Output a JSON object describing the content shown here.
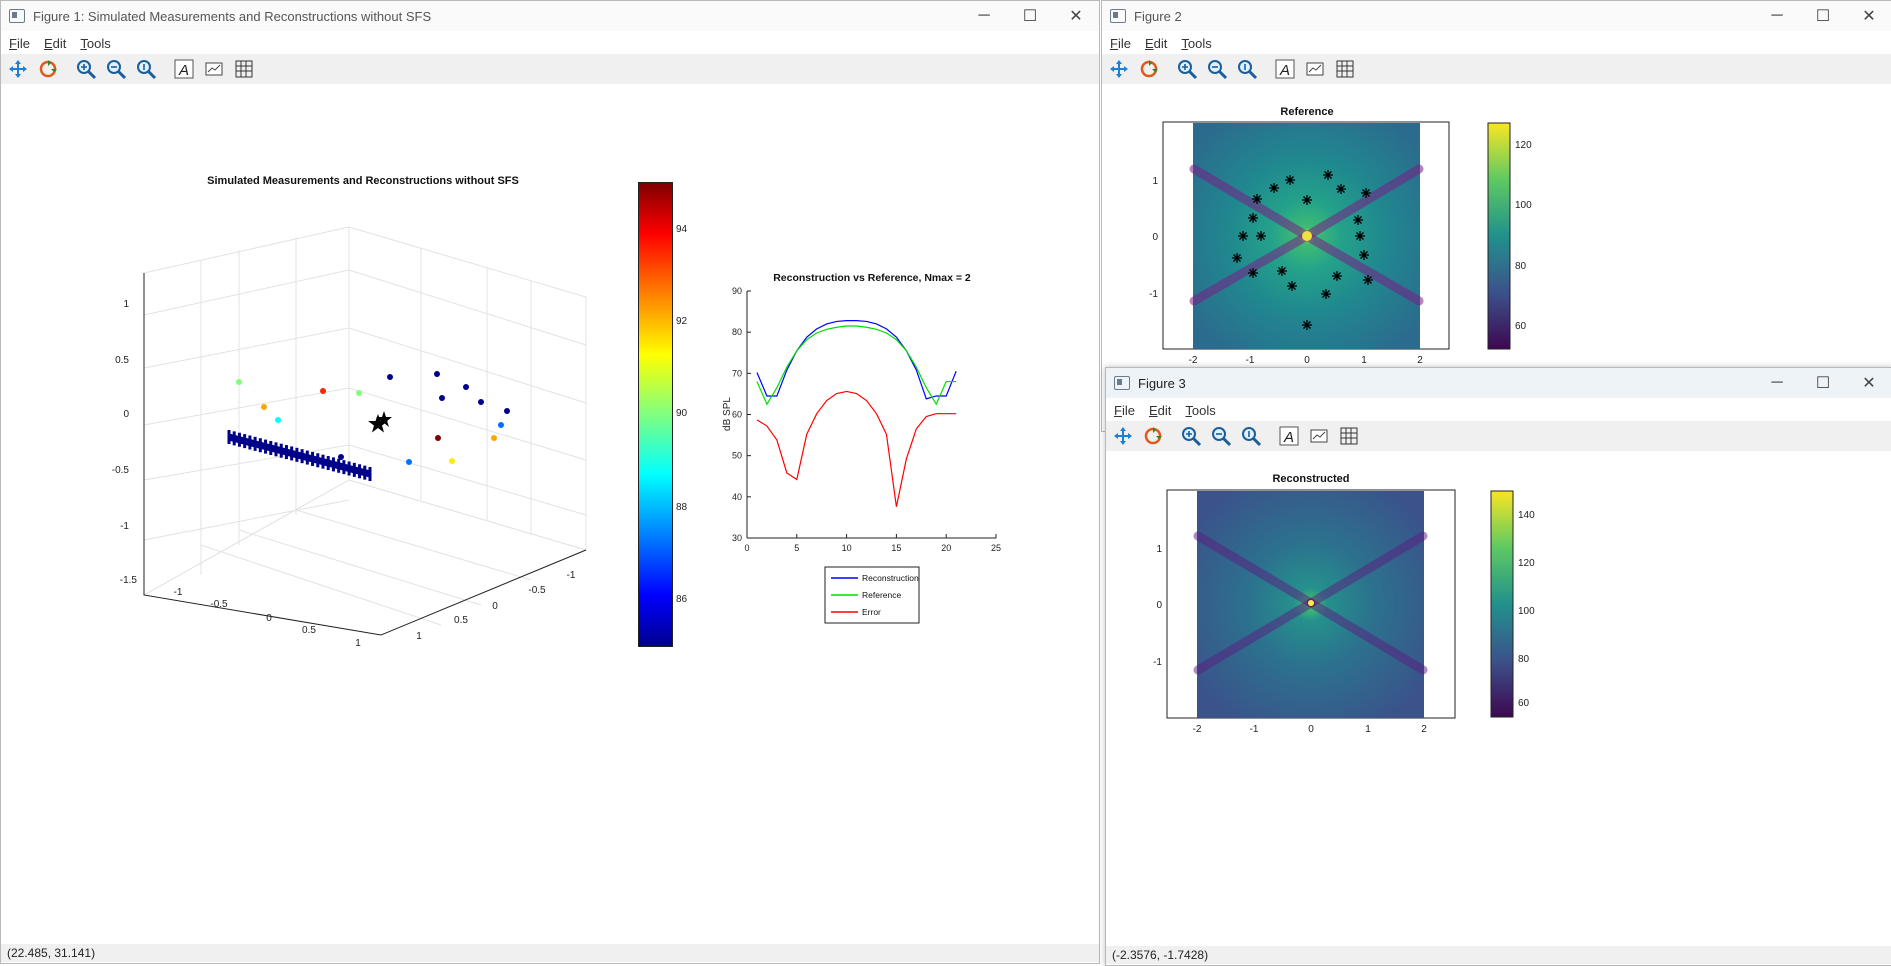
{
  "fig1": {
    "title": "Figure 1: Simulated Measurements and Reconstructions without SFS",
    "menu": [
      "File",
      "Edit",
      "Tools"
    ],
    "status": "(22.485, 31.141)",
    "plot3d": {
      "title": "Simulated Measurements and Reconstructions without SFS",
      "z_ticks": [
        "1",
        "0.5",
        "0",
        "-0.5",
        "-1",
        "-1.5"
      ],
      "x_ticks": [
        "-1",
        "-0.5",
        "0",
        "0.5",
        "1"
      ],
      "y_ticks": [
        "-1",
        "-0.5",
        "0",
        "0.5",
        "1"
      ]
    },
    "colorbar": {
      "ticks": [
        "94",
        "92",
        "90",
        "88",
        "86"
      ],
      "range": [
        85,
        95
      ],
      "colormap": "jet"
    }
  },
  "fig2": {
    "title": "Figure 2",
    "menu": [
      "File",
      "Edit",
      "Tools"
    ],
    "plot": {
      "title": "Reference",
      "x_ticks": [
        "-2",
        "-1",
        "0",
        "1",
        "2"
      ],
      "y_ticks": [
        "1",
        "0",
        "-1"
      ],
      "colorbar_ticks": [
        "120",
        "100",
        "80",
        "60"
      ],
      "colormap": "parula"
    }
  },
  "fig3": {
    "title": "Figure 3",
    "menu": [
      "File",
      "Edit",
      "Tools"
    ],
    "status": "(-2.3576, -1.7428)",
    "plot": {
      "title": "Reconstructed",
      "x_ticks": [
        "-2",
        "-1",
        "0",
        "1",
        "2"
      ],
      "y_ticks": [
        "1",
        "0",
        "-1"
      ],
      "colorbar_ticks": [
        "140",
        "120",
        "100",
        "80",
        "60"
      ],
      "colormap": "parula"
    }
  },
  "window_controls": {
    "minimize": "─",
    "maximize": "☐",
    "close": "✕"
  },
  "chart_data": {
    "type": "line",
    "title": "Reconstruction vs Reference, Nmax = 2",
    "xlabel": "",
    "ylabel": "dB SPL",
    "xlim": [
      0,
      25
    ],
    "ylim": [
      30,
      90
    ],
    "x_ticks": [
      "0",
      "5",
      "10",
      "15",
      "20",
      "25"
    ],
    "y_ticks": [
      "30",
      "40",
      "50",
      "60",
      "70",
      "80",
      "90"
    ],
    "x": [
      1,
      2,
      3,
      4,
      5,
      6,
      7,
      8,
      9,
      10,
      11,
      12,
      13,
      14,
      15,
      16,
      17,
      18,
      19,
      20,
      21
    ],
    "series": [
      {
        "name": "Reconstruction",
        "color": "#0000ff",
        "values": [
          70.2,
          64.5,
          64.5,
          70.8,
          75.5,
          78.8,
          80.8,
          82.0,
          82.6,
          82.8,
          82.8,
          82.6,
          82.0,
          80.8,
          78.8,
          75.5,
          70.8,
          63.8,
          64.5,
          64.5,
          70.5
        ]
      },
      {
        "name": "Reference",
        "color": "#00dd00",
        "values": [
          68.0,
          62.5,
          66.5,
          71.5,
          75.5,
          78.2,
          79.8,
          80.7,
          81.2,
          81.5,
          81.5,
          81.2,
          80.7,
          79.8,
          78.2,
          75.5,
          71.5,
          66.5,
          62.5,
          68.0,
          68.0
        ]
      },
      {
        "name": "Error",
        "color": "#ff0000",
        "values": [
          58.7,
          57.2,
          53.8,
          45.8,
          44.2,
          55.2,
          60.2,
          63.4,
          65.1,
          65.6,
          65.1,
          63.4,
          60.2,
          55.2,
          37.6,
          49.2,
          56.5,
          59.5,
          60.2,
          60.2,
          60.2
        ]
      }
    ],
    "legend": "bottom"
  }
}
